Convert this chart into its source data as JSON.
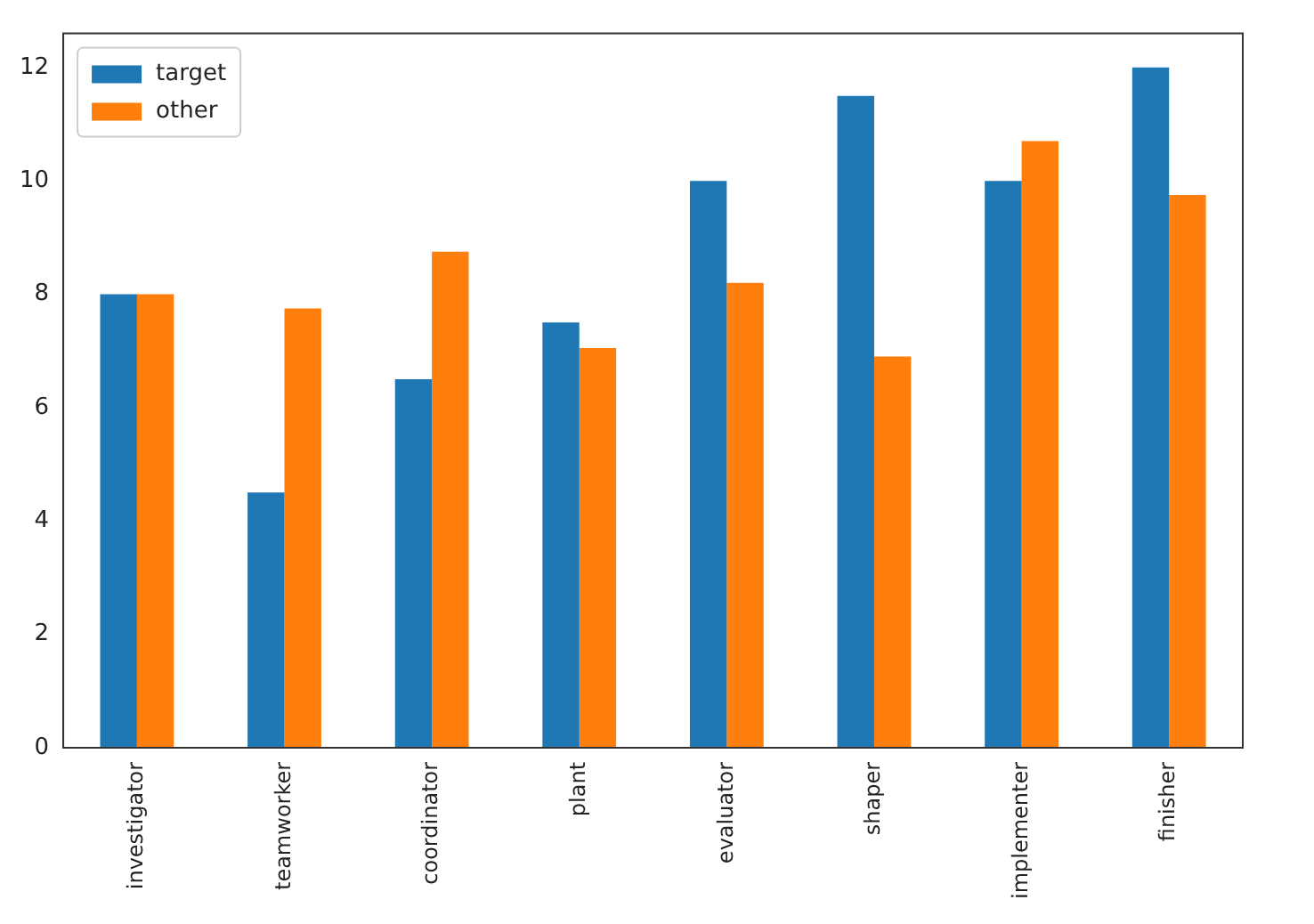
{
  "chart_data": {
    "type": "bar",
    "categories": [
      "investigator",
      "teamworker",
      "coordinator",
      "plant",
      "evaluator",
      "shaper",
      "implementer",
      "finisher"
    ],
    "series": [
      {
        "name": "target",
        "color": "#1f77b4",
        "values": [
          8,
          4.5,
          6.5,
          7.5,
          10,
          11.5,
          10,
          12
        ]
      },
      {
        "name": "other",
        "color": "#ff7f0e",
        "values": [
          8,
          7.75,
          8.75,
          7.05,
          8.2,
          6.9,
          10.7,
          9.75
        ]
      }
    ],
    "ylim": [
      0,
      12.6
    ],
    "yticks": [
      0,
      2,
      4,
      6,
      8,
      10,
      12
    ],
    "grid": false,
    "legend": "top left"
  }
}
